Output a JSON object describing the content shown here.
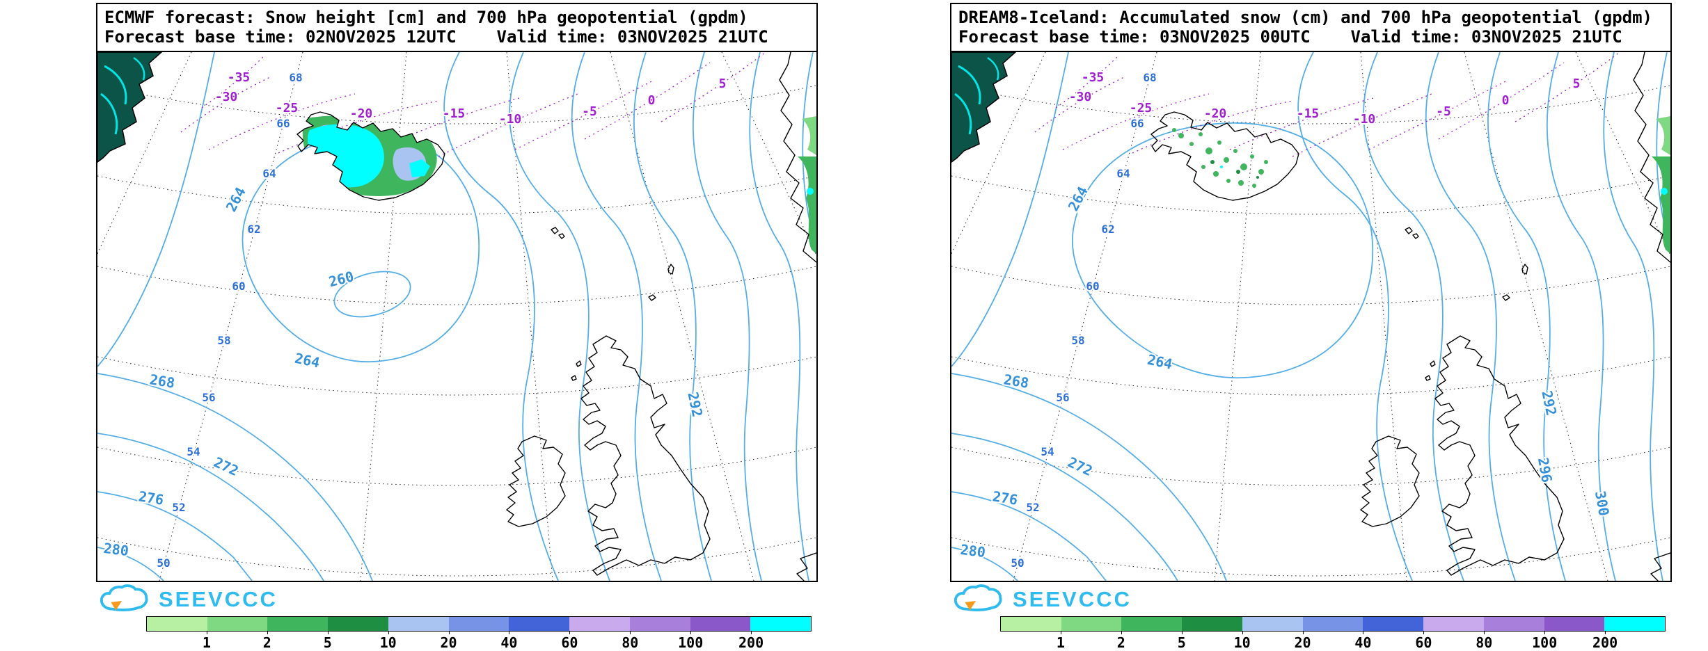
{
  "shared": {
    "logo_text": "SEEVCCC",
    "legend": {
      "unit_ticks": [
        "1",
        "2",
        "5",
        "10",
        "20",
        "40",
        "60",
        "80",
        "100",
        "200"
      ],
      "colors": [
        "#b7f0a2",
        "#7fd882",
        "#3fb55e",
        "#1e8f42",
        "#a9c4f0",
        "#7793e6",
        "#4363d8",
        "#c9aaec",
        "#a880dc",
        "#8a58c8",
        "#00ffff"
      ]
    },
    "latitude_labels": [
      "68",
      "66",
      "64",
      "62",
      "60",
      "58",
      "56",
      "54",
      "52",
      "50"
    ],
    "temperature_labels": [
      "-35",
      "-30",
      "-25",
      "-20",
      "-15",
      "-10",
      "-5",
      "0",
      "5"
    ],
    "colors": {
      "geopotential_contour": "#55aee6",
      "temperature_contour": "#a020d0",
      "snow_heavy": "#00ffff",
      "logo": "#2fbbee"
    }
  },
  "panels": [
    {
      "id": "ecmwf",
      "title": "ECMWF forecast: Snow height [cm] and 700 hPa geopotential (gpdm)",
      "subtitle": "Forecast base time: 02NOV2025 12UTC    Valid time: 03NOV2025 21UTC",
      "geopotential_labels": {
        "g260": "260",
        "g264a": "264",
        "g264b": "264",
        "g268": "268",
        "g272": "272",
        "g276": "276",
        "g280": "280",
        "g292": "292"
      }
    },
    {
      "id": "dream8",
      "title": "DREAM8-Iceland: Accumulated snow (cm) and 700 hPa geopotential (gpdm)",
      "subtitle": "Forecast base time: 03NOV2025 00UTC    Valid time: 03NOV2025 21UTC",
      "geopotential_labels": {
        "g264a": "264",
        "g264b": "264",
        "g268": "268",
        "g272": "272",
        "g276": "276",
        "g280": "280",
        "g292": "292",
        "g296": "296",
        "g300": "300"
      }
    }
  ]
}
